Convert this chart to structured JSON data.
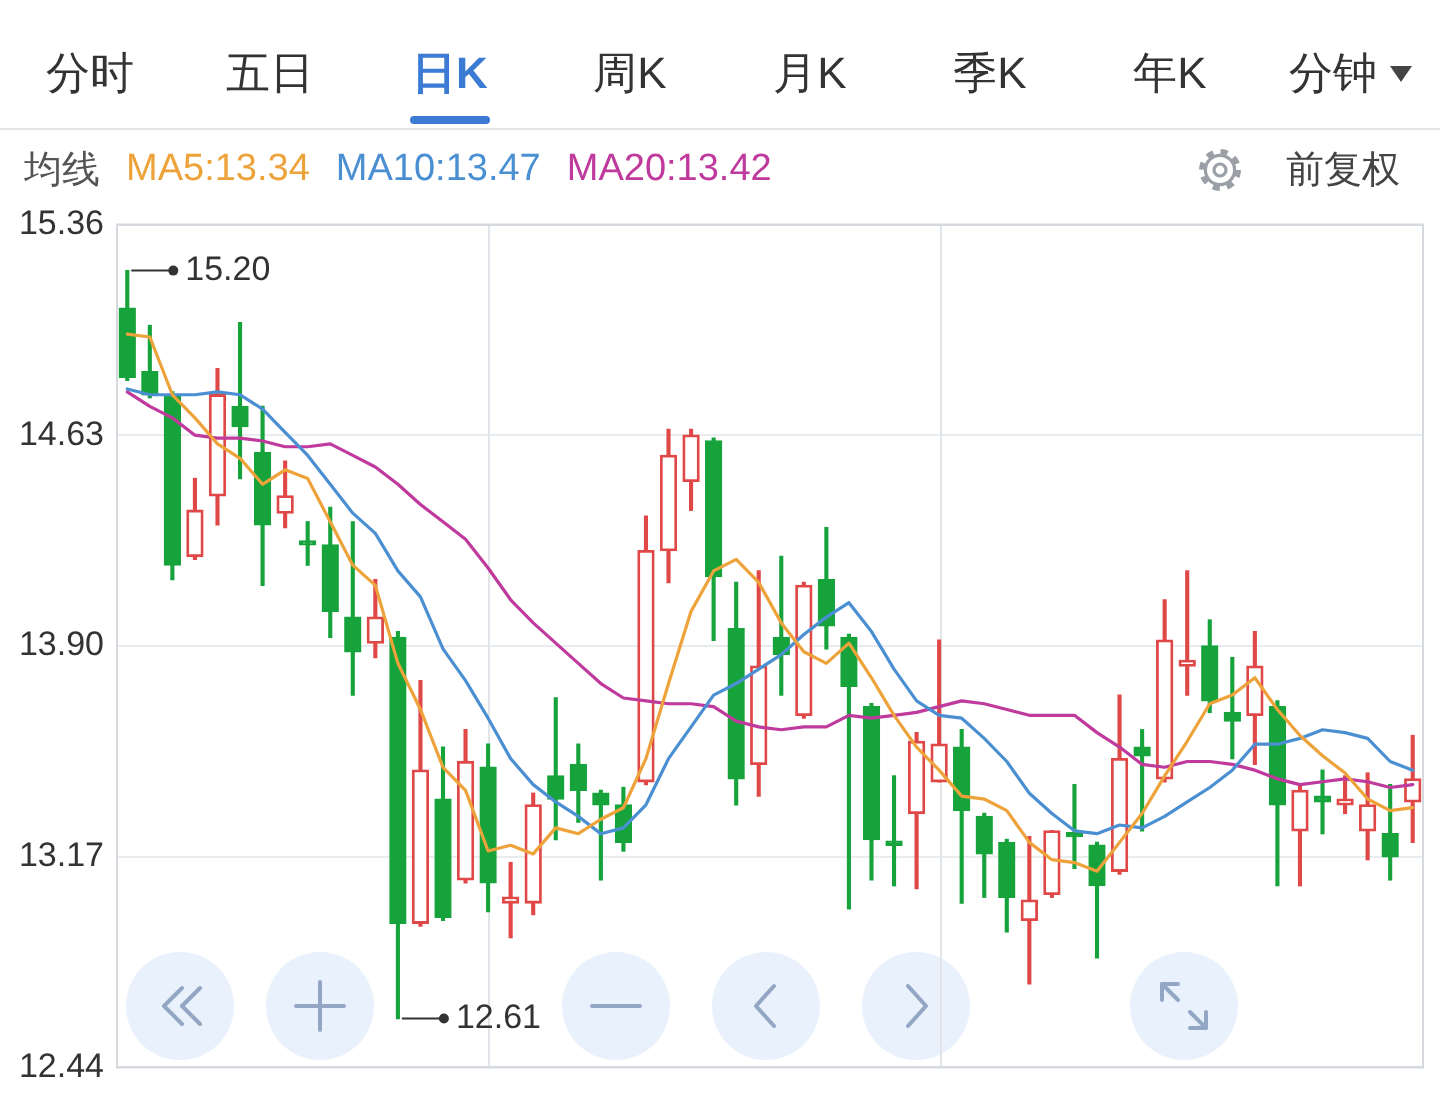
{
  "chart_data": {
    "type": "candlestick",
    "categories": [
      null,
      null,
      null,
      null,
      null,
      null,
      null,
      null,
      null,
      null,
      null,
      null,
      null,
      null,
      null,
      null,
      null,
      null,
      null,
      null,
      null,
      null,
      null,
      null,
      null,
      null,
      null,
      null,
      null,
      null,
      null,
      null,
      null,
      null,
      null,
      null,
      null,
      null,
      null,
      null,
      null,
      null,
      null,
      null,
      null,
      null,
      null,
      null,
      null,
      null,
      null,
      null,
      null,
      null,
      null,
      null,
      null,
      null
    ],
    "ohlc": [
      [
        15.07,
        15.2,
        14.82,
        14.83
      ],
      [
        14.85,
        15.01,
        14.76,
        14.77
      ],
      [
        14.77,
        14.78,
        14.13,
        14.18
      ],
      [
        14.21,
        14.48,
        14.2,
        14.37
      ],
      [
        14.42,
        14.86,
        14.32,
        14.77
      ],
      [
        14.73,
        15.02,
        14.48,
        14.66
      ],
      [
        14.57,
        14.73,
        14.11,
        14.32
      ],
      [
        14.36,
        14.54,
        14.31,
        14.42
      ],
      [
        14.26,
        14.33,
        14.18,
        14.25
      ],
      [
        14.25,
        14.38,
        13.93,
        14.02
      ],
      [
        14.0,
        14.33,
        13.73,
        13.88
      ],
      [
        13.91,
        14.13,
        13.86,
        14.0
      ],
      [
        13.93,
        13.95,
        12.61,
        12.94
      ],
      [
        12.94,
        13.78,
        12.93,
        13.47
      ],
      [
        13.37,
        13.55,
        12.95,
        12.96
      ],
      [
        13.09,
        13.61,
        13.08,
        13.5
      ],
      [
        13.48,
        13.56,
        12.98,
        13.08
      ],
      [
        13.01,
        13.15,
        12.89,
        13.03
      ],
      [
        13.01,
        13.39,
        12.97,
        13.35
      ],
      [
        13.45,
        13.72,
        13.23,
        13.37
      ],
      [
        13.49,
        13.56,
        13.29,
        13.4
      ],
      [
        13.39,
        13.4,
        13.09,
        13.35
      ],
      [
        13.35,
        13.41,
        13.19,
        13.22
      ],
      [
        13.43,
        14.35,
        13.42,
        14.23
      ],
      [
        14.23,
        14.65,
        14.12,
        14.56
      ],
      [
        14.47,
        14.65,
        14.37,
        14.63
      ],
      [
        14.61,
        14.62,
        13.92,
        14.14
      ],
      [
        13.96,
        14.12,
        13.35,
        13.44
      ],
      [
        13.49,
        14.16,
        13.38,
        13.83
      ],
      [
        13.93,
        14.21,
        13.73,
        13.87
      ],
      [
        13.66,
        14.12,
        13.65,
        14.11
      ],
      [
        14.13,
        14.31,
        13.89,
        13.97
      ],
      [
        13.93,
        13.94,
        12.99,
        13.76
      ],
      [
        13.69,
        13.7,
        13.09,
        13.23
      ],
      [
        13.22,
        13.45,
        13.07,
        13.21
      ],
      [
        13.32,
        13.6,
        13.06,
        13.57
      ],
      [
        13.43,
        13.92,
        13.43,
        13.56
      ],
      [
        13.55,
        13.61,
        13.01,
        13.33
      ],
      [
        13.31,
        13.32,
        13.03,
        13.18
      ],
      [
        13.22,
        13.23,
        12.91,
        13.03
      ],
      [
        12.95,
        13.24,
        12.73,
        13.02
      ],
      [
        13.04,
        13.26,
        13.03,
        13.26
      ],
      [
        13.25,
        13.42,
        13.13,
        13.24
      ],
      [
        13.21,
        13.22,
        12.82,
        13.07
      ],
      [
        13.12,
        13.73,
        13.11,
        13.51
      ],
      [
        13.55,
        13.61,
        13.26,
        13.52
      ],
      [
        13.44,
        14.06,
        13.43,
        13.92
      ],
      [
        13.83,
        14.16,
        13.73,
        13.85
      ],
      [
        13.9,
        13.99,
        13.67,
        13.71
      ],
      [
        13.67,
        13.86,
        13.51,
        13.64
      ],
      [
        13.66,
        13.95,
        13.49,
        13.83
      ],
      [
        13.69,
        13.71,
        13.07,
        13.35
      ],
      [
        13.26,
        13.42,
        13.07,
        13.4
      ],
      [
        13.38,
        13.47,
        13.25,
        13.36
      ],
      [
        13.35,
        13.45,
        13.32,
        13.37
      ],
      [
        13.26,
        13.46,
        13.16,
        13.35
      ],
      [
        13.25,
        13.42,
        13.09,
        13.17
      ],
      [
        13.36,
        13.59,
        13.22,
        13.44
      ]
    ],
    "colors": [
      "#16a33b",
      "#16a33b",
      "#16a33b",
      "#e04848",
      "#e04848",
      "#16a33b",
      "#16a33b",
      "#e04848",
      "#16a33b",
      "#16a33b",
      "#16a33b",
      "#e04848",
      "#16a33b",
      "#e04848",
      "#16a33b",
      "#e04848",
      "#16a33b",
      "#e04848",
      "#e04848",
      "#16a33b",
      "#16a33b",
      "#16a33b",
      "#16a33b",
      "#e04848",
      "#e04848",
      "#e04848",
      "#16a33b",
      "#16a33b",
      "#e04848",
      "#16a33b",
      "#e04848",
      "#16a33b",
      "#16a33b",
      "#16a33b",
      "#16a33b",
      "#e04848",
      "#e04848",
      "#16a33b",
      "#16a33b",
      "#16a33b",
      "#e04848",
      "#e04848",
      "#16a33b",
      "#16a33b",
      "#e04848",
      "#16a33b",
      "#e04848",
      "#e04848",
      "#16a33b",
      "#16a33b",
      "#e04848",
      "#16a33b",
      "#e04848",
      "#16a33b",
      "#e04848",
      "#e04848",
      "#16a33b",
      "#e04848"
    ],
    "series": [
      {
        "type": "line",
        "name": "MA5:13.34",
        "color": "#eda23a",
        "values": [
          14.98,
          14.97,
          14.77,
          14.69,
          14.6,
          14.55,
          14.46,
          14.51,
          14.48,
          14.33,
          14.18,
          14.11,
          13.84,
          13.68,
          13.48,
          13.4,
          13.19,
          13.21,
          13.18,
          13.27,
          13.25,
          13.3,
          13.34,
          13.51,
          13.77,
          14.02,
          14.16,
          14.2,
          14.12,
          13.98,
          13.88,
          13.84,
          13.91,
          13.79,
          13.66,
          13.55,
          13.47,
          13.38,
          13.37,
          13.33,
          13.22,
          13.16,
          13.15,
          13.12,
          13.22,
          13.32,
          13.45,
          13.57,
          13.7,
          13.73,
          13.79,
          13.68,
          13.59,
          13.52,
          13.46,
          13.37,
          13.33,
          13.34
        ]
      },
      {
        "type": "line",
        "name": "MA10:13.47",
        "color": "#4a8fd2",
        "values": [
          14.79,
          14.77,
          14.77,
          14.77,
          14.78,
          14.77,
          14.72,
          14.64,
          14.56,
          14.46,
          14.36,
          14.29,
          14.16,
          14.07,
          13.89,
          13.78,
          13.65,
          13.51,
          13.42,
          13.36,
          13.31,
          13.25,
          13.27,
          13.35,
          13.51,
          13.62,
          13.73,
          13.77,
          13.82,
          13.87,
          13.94,
          14.0,
          14.05,
          13.95,
          13.82,
          13.71,
          13.66,
          13.65,
          13.58,
          13.5,
          13.39,
          13.32,
          13.26,
          13.25,
          13.28,
          13.27,
          13.31,
          13.36,
          13.41,
          13.47,
          13.56,
          13.56,
          13.58,
          13.61,
          13.6,
          13.58,
          13.5,
          13.47
        ]
      },
      {
        "type": "line",
        "name": "MA20:13.42",
        "color": "#bf3a9c",
        "values": [
          14.78,
          14.73,
          14.69,
          14.63,
          14.62,
          14.62,
          14.61,
          14.59,
          14.59,
          14.6,
          14.56,
          14.52,
          14.46,
          14.39,
          14.33,
          14.27,
          14.17,
          14.06,
          13.98,
          13.91,
          13.84,
          13.77,
          13.72,
          13.71,
          13.7,
          13.7,
          13.69,
          13.64,
          13.62,
          13.61,
          13.62,
          13.62,
          13.66,
          13.65,
          13.66,
          13.67,
          13.69,
          13.71,
          13.7,
          13.68,
          13.66,
          13.66,
          13.66,
          13.6,
          13.55,
          13.49,
          13.48,
          13.5,
          13.5,
          13.49,
          13.47,
          13.44,
          13.42,
          13.43,
          13.44,
          13.43,
          13.41,
          13.42
        ]
      }
    ],
    "legend_title": "均线",
    "legend": "top left",
    "marker": "none",
    "ylim": [
      12.44,
      15.36
    ],
    "yticks": [
      12.44,
      13.17,
      {
        "value": 13.9,
        "label": "13.90"
      },
      14.63,
      15.36
    ],
    "grid": "y",
    "tick_labels": "y",
    "annotations": [
      "分时",
      "五日",
      "日K",
      "周K",
      "月K",
      "季K",
      "年K",
      "分钟",
      "前复权",
      "15.20",
      "12.61"
    ]
  }
}
